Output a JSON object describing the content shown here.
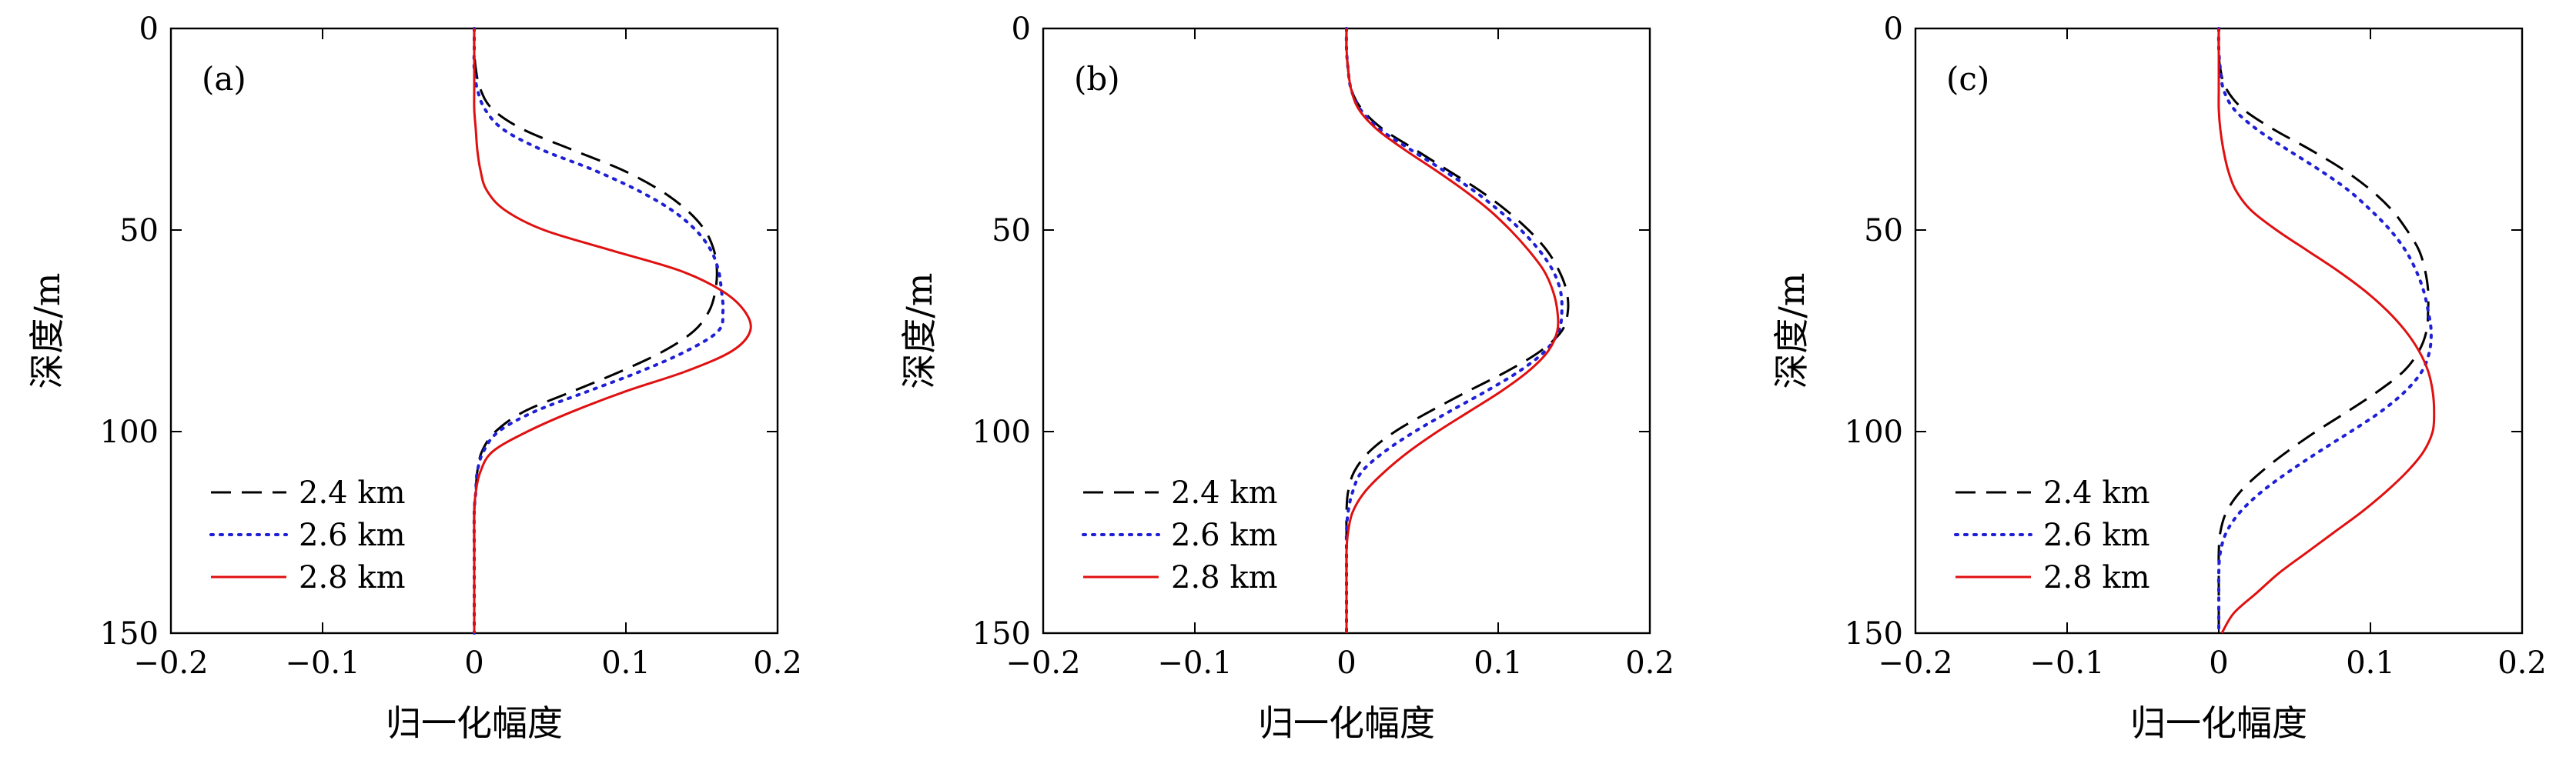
{
  "chart_data": [
    {
      "type": "line",
      "panel_label": "(a)",
      "xlabel": "归一化幅度",
      "ylabel": "深度/m",
      "xlim": [
        -0.2,
        0.2
      ],
      "ylim": [
        0,
        150
      ],
      "y_inverted": true,
      "xticks": [
        -0.2,
        -0.1,
        0,
        0.1,
        0.2
      ],
      "xtick_labels": [
        "−0.2",
        "−0.1",
        "0",
        "0.1",
        "0.2"
      ],
      "yticks": [
        0,
        50,
        100,
        150
      ],
      "ytick_labels": [
        "0",
        "50",
        "100",
        "150"
      ],
      "legend_position": "bottom-left",
      "series": [
        {
          "name": "2.4 km",
          "style": "dashed",
          "color": "#000000",
          "depth": [
            0,
            5,
            10,
            15,
            20,
            25,
            30,
            35,
            40,
            45,
            50,
            55,
            60,
            65,
            70,
            75,
            80,
            85,
            90,
            95,
            100,
            105,
            110,
            115,
            120,
            130,
            140,
            150
          ],
          "amplitude": [
            0,
            0,
            0.001,
            0.004,
            0.012,
            0.032,
            0.064,
            0.097,
            0.122,
            0.14,
            0.152,
            0.158,
            0.16,
            0.159,
            0.155,
            0.145,
            0.125,
            0.097,
            0.065,
            0.033,
            0.014,
            0.005,
            0.002,
            0.001,
            0,
            0,
            0,
            0
          ]
        },
        {
          "name": "2.6 km",
          "style": "dotted",
          "color": "#1f1fd6",
          "depth": [
            0,
            5,
            10,
            15,
            20,
            25,
            30,
            35,
            40,
            45,
            50,
            55,
            60,
            65,
            70,
            75,
            80,
            85,
            90,
            95,
            100,
            105,
            110,
            115,
            120,
            130,
            140,
            150
          ],
          "amplitude": [
            0,
            0,
            0,
            0.002,
            0.007,
            0.019,
            0.044,
            0.078,
            0.107,
            0.13,
            0.146,
            0.156,
            0.161,
            0.163,
            0.164,
            0.161,
            0.14,
            0.11,
            0.075,
            0.04,
            0.016,
            0.006,
            0.002,
            0.001,
            0,
            0,
            0,
            0
          ]
        },
        {
          "name": "2.8 km",
          "style": "solid",
          "color": "#e01010",
          "depth": [
            0,
            5,
            10,
            15,
            20,
            25,
            30,
            35,
            40,
            45,
            50,
            55,
            60,
            65,
            70,
            75,
            80,
            85,
            90,
            95,
            100,
            105,
            110,
            115,
            120,
            130,
            140,
            150
          ],
          "amplitude": [
            0,
            0,
            0,
            0,
            0,
            0.001,
            0.002,
            0.004,
            0.008,
            0.02,
            0.046,
            0.09,
            0.135,
            0.163,
            0.178,
            0.182,
            0.17,
            0.14,
            0.1,
            0.065,
            0.035,
            0.012,
            0.004,
            0.001,
            0,
            0,
            0,
            0
          ]
        }
      ]
    },
    {
      "type": "line",
      "panel_label": "(b)",
      "xlabel": "归一化幅度",
      "ylabel": "深度/m",
      "xlim": [
        -0.2,
        0.2
      ],
      "ylim": [
        0,
        150
      ],
      "y_inverted": true,
      "xticks": [
        -0.2,
        -0.1,
        0,
        0.1,
        0.2
      ],
      "xtick_labels": [
        "−0.2",
        "−0.1",
        "0",
        "0.1",
        "0.2"
      ],
      "yticks": [
        0,
        50,
        100,
        150
      ],
      "ytick_labels": [
        "0",
        "50",
        "100",
        "150"
      ],
      "legend_position": "bottom-left",
      "series": [
        {
          "name": "2.4 km",
          "style": "dashed",
          "color": "#000000",
          "depth": [
            0,
            5,
            10,
            15,
            20,
            25,
            30,
            35,
            40,
            45,
            50,
            55,
            60,
            65,
            70,
            75,
            80,
            85,
            90,
            95,
            100,
            105,
            110,
            115,
            120,
            125,
            130,
            140,
            150
          ],
          "amplitude": [
            0,
            0,
            0.001,
            0.003,
            0.01,
            0.024,
            0.045,
            0.066,
            0.087,
            0.105,
            0.12,
            0.132,
            0.14,
            0.145,
            0.146,
            0.142,
            0.128,
            0.106,
            0.08,
            0.055,
            0.032,
            0.015,
            0.005,
            0.001,
            0,
            0,
            0,
            0,
            0
          ]
        },
        {
          "name": "2.6 km",
          "style": "dotted",
          "color": "#1f1fd6",
          "depth": [
            0,
            5,
            10,
            15,
            20,
            25,
            30,
            35,
            40,
            45,
            50,
            55,
            60,
            65,
            70,
            75,
            80,
            85,
            90,
            95,
            100,
            105,
            110,
            115,
            120,
            125,
            130,
            140,
            150
          ],
          "amplitude": [
            0,
            0,
            0.001,
            0.003,
            0.009,
            0.022,
            0.042,
            0.063,
            0.083,
            0.1,
            0.115,
            0.127,
            0.136,
            0.141,
            0.142,
            0.14,
            0.131,
            0.114,
            0.092,
            0.068,
            0.045,
            0.025,
            0.01,
            0.004,
            0.001,
            0,
            0,
            0,
            0
          ]
        },
        {
          "name": "2.8 km",
          "style": "solid",
          "color": "#e01010",
          "depth": [
            0,
            5,
            10,
            15,
            20,
            25,
            30,
            35,
            40,
            45,
            50,
            55,
            60,
            65,
            70,
            75,
            80,
            85,
            90,
            95,
            100,
            105,
            110,
            115,
            120,
            125,
            130,
            140,
            150
          ],
          "amplitude": [
            0,
            0,
            0.001,
            0.003,
            0.008,
            0.02,
            0.038,
            0.058,
            0.077,
            0.094,
            0.108,
            0.12,
            0.13,
            0.136,
            0.139,
            0.139,
            0.133,
            0.12,
            0.102,
            0.081,
            0.06,
            0.041,
            0.025,
            0.012,
            0.004,
            0.001,
            0,
            0,
            0
          ]
        }
      ]
    },
    {
      "type": "line",
      "panel_label": "(c)",
      "xlabel": "归一化幅度",
      "ylabel": "深度/m",
      "xlim": [
        -0.2,
        0.2
      ],
      "ylim": [
        0,
        150
      ],
      "y_inverted": true,
      "xticks": [
        -0.2,
        -0.1,
        0,
        0.1,
        0.2
      ],
      "xtick_labels": [
        "−0.2",
        "−0.1",
        "0",
        "0.1",
        "0.2"
      ],
      "yticks": [
        0,
        50,
        100,
        150
      ],
      "ytick_labels": [
        "0",
        "50",
        "100",
        "150"
      ],
      "legend_position": "bottom-left",
      "series": [
        {
          "name": "2.4 km",
          "style": "dashed",
          "color": "#000000",
          "depth": [
            0,
            5,
            10,
            15,
            20,
            25,
            30,
            35,
            40,
            45,
            50,
            55,
            60,
            65,
            70,
            75,
            80,
            85,
            90,
            95,
            100,
            105,
            110,
            115,
            120,
            125,
            130,
            135,
            140,
            150
          ],
          "amplitude": [
            0,
            0,
            0.001,
            0.005,
            0.016,
            0.036,
            0.06,
            0.082,
            0.1,
            0.114,
            0.124,
            0.132,
            0.136,
            0.138,
            0.138,
            0.137,
            0.132,
            0.122,
            0.105,
            0.085,
            0.064,
            0.045,
            0.028,
            0.014,
            0.005,
            0.001,
            0,
            0,
            0,
            0
          ]
        },
        {
          "name": "2.6 km",
          "style": "dotted",
          "color": "#1f1fd6",
          "depth": [
            0,
            5,
            10,
            15,
            20,
            25,
            30,
            35,
            40,
            45,
            50,
            55,
            60,
            65,
            70,
            75,
            80,
            85,
            90,
            95,
            100,
            105,
            110,
            115,
            120,
            125,
            130,
            135,
            140,
            150
          ],
          "amplitude": [
            0,
            0,
            0.001,
            0.003,
            0.01,
            0.025,
            0.045,
            0.066,
            0.085,
            0.1,
            0.113,
            0.123,
            0.13,
            0.135,
            0.138,
            0.14,
            0.139,
            0.134,
            0.123,
            0.107,
            0.087,
            0.066,
            0.046,
            0.028,
            0.014,
            0.005,
            0.001,
            0,
            0,
            0
          ]
        },
        {
          "name": "2.8 km",
          "style": "solid",
          "color": "#e01010",
          "depth": [
            0,
            5,
            10,
            15,
            20,
            25,
            30,
            35,
            40,
            45,
            50,
            55,
            60,
            65,
            70,
            75,
            80,
            85,
            90,
            95,
            100,
            105,
            110,
            115,
            120,
            125,
            130,
            135,
            140,
            145,
            150
          ],
          "amplitude": [
            0,
            0,
            0,
            0,
            0,
            0.001,
            0.003,
            0.006,
            0.011,
            0.021,
            0.038,
            0.058,
            0.078,
            0.096,
            0.111,
            0.123,
            0.132,
            0.138,
            0.141,
            0.142,
            0.141,
            0.135,
            0.124,
            0.11,
            0.094,
            0.076,
            0.058,
            0.04,
            0.025,
            0.01,
            0.002
          ]
        }
      ]
    }
  ]
}
